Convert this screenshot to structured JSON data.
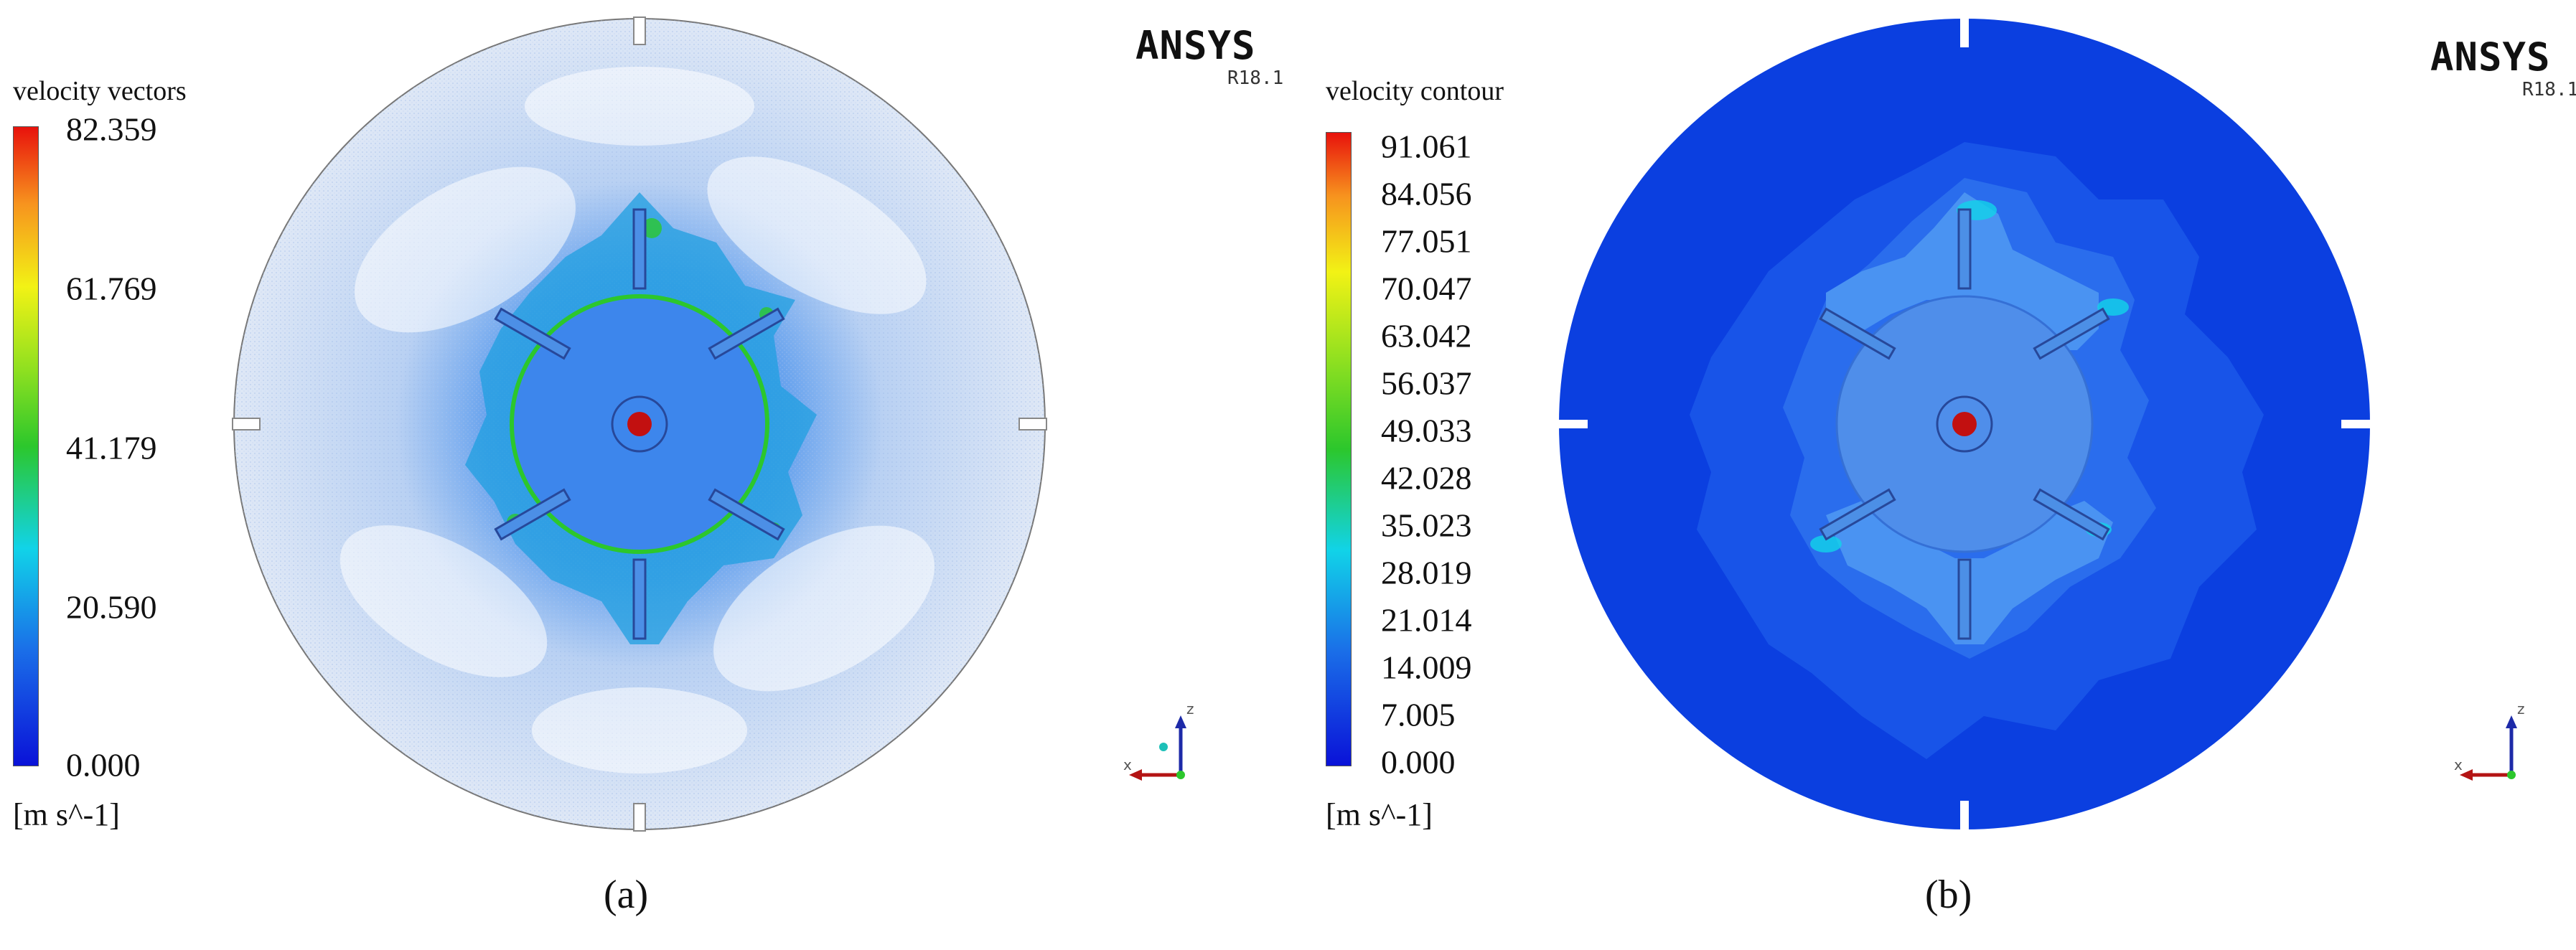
{
  "panels": [
    {
      "id": "a",
      "legend": {
        "title": "velocity vectors",
        "ticks": [
          "82.359",
          "61.769",
          "41.179",
          "20.590",
          "0.000"
        ],
        "unit": "[m s^-1]"
      },
      "brand": "ANSYS",
      "version": "R18.1",
      "caption": "(a)",
      "triad_labels": {
        "z": "z",
        "x": "x"
      }
    },
    {
      "id": "b",
      "legend": {
        "title": "velocity contour",
        "ticks": [
          "91.061",
          "84.056",
          "77.051",
          "70.047",
          "63.042",
          "56.037",
          "49.033",
          "42.028",
          "35.023",
          "28.019",
          "21.014",
          "14.009",
          "7.005",
          "0.000"
        ],
        "unit": "[m s^-1]"
      },
      "brand": "ANSYS",
      "version": "R18.1",
      "caption": "(b)",
      "triad_labels": {
        "z": "z",
        "x": "x"
      }
    }
  ],
  "colors": {
    "colormap_top": "#e8120c",
    "colormap_orange": "#f7931e",
    "colormap_yellow": "#f2f215",
    "colormap_green": "#2cc72c",
    "colormap_cyan": "#11d3e8",
    "colormap_blue": "#1a6ee8",
    "colormap_bottom": "#0a12d8",
    "impeller_blue": "#3d86ec",
    "field_blue": "#0b3fe0",
    "hub_red": "#c21010"
  }
}
